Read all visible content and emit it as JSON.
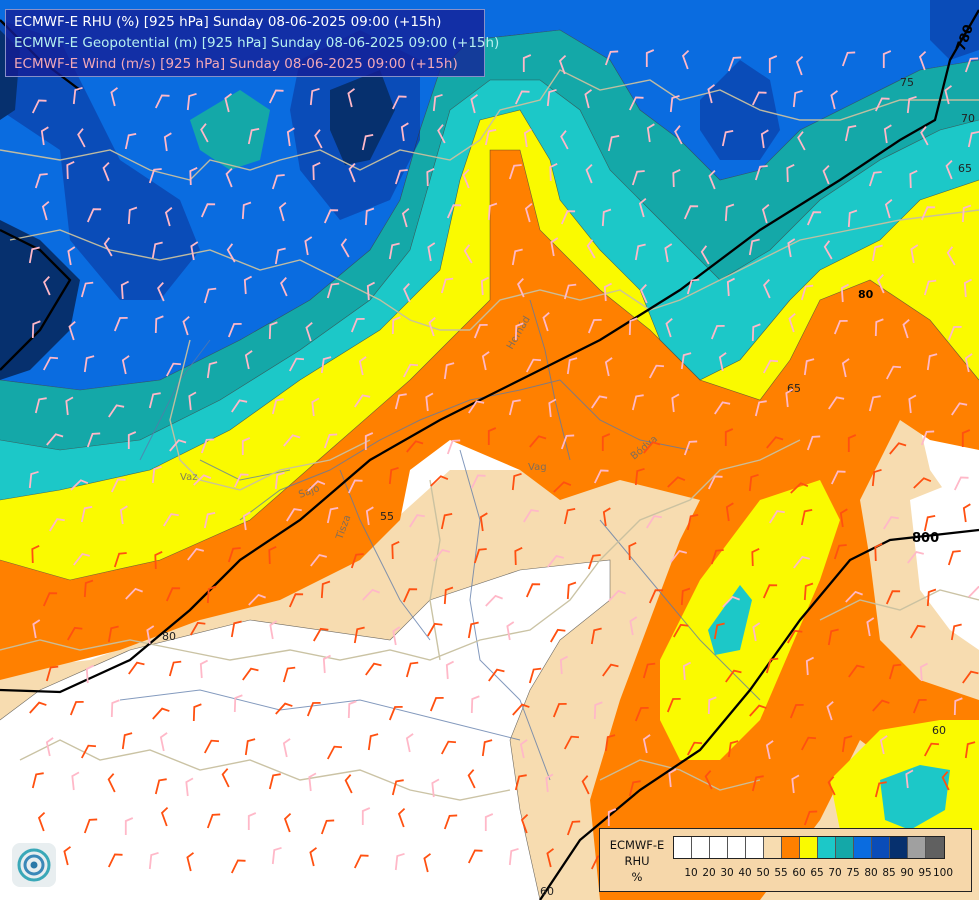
{
  "header": {
    "line1": "ECMWF-E RHU (%) [925 hPa] Sunday 08-06-2025 09:00 (+15h)",
    "line2": "ECMWF-E Geopotential (m) [925 hPa] Sunday 08-06-2025 09:00 (+15h)",
    "line3": "ECMWF-E Wind (m/s) [925 hPa] Sunday 08-06-2025 09:00 (+15h)",
    "colors": {
      "line1": "#ffffff",
      "line2": "#b7f0f0",
      "line3": "#f2a8b8"
    }
  },
  "map": {
    "geopotential_labels": [
      "780",
      "800",
      "80"
    ],
    "rhu_contour_labels": [
      "75",
      "70",
      "65",
      "80",
      "65",
      "60",
      "60",
      "55"
    ],
    "river_labels": [
      "Hernád",
      "Vag",
      "Bódva",
      "Sajó",
      "Tisza",
      "Vaz"
    ],
    "colors": {
      "rhu_100": "#ffffff",
      "rhu_55": "#f7dcb0",
      "rhu_60": "#ff8000",
      "rhu_65": "#fafa00",
      "rhu_70": "#1cc8c8",
      "rhu_75": "#14a8a8",
      "rhu_80": "#0a6ce0",
      "rhu_85": "#0a4cb8",
      "rhu_90": "#06306e",
      "geopotential": "#000000",
      "border": "#c8c0a0",
      "river": "#5a78a8",
      "barb_strong": "#ff5010",
      "barb_weak": "#ffb8c8"
    }
  },
  "legend": {
    "title_lines": [
      "ECMWF-E",
      "RHU",
      "%"
    ],
    "colors": [
      "#ffffff",
      "#ffffff",
      "#ffffff",
      "#ffffff",
      "#ffffff",
      "#f7dcb0",
      "#ff8000",
      "#fafa00",
      "#1cc8c8",
      "#14a8a8",
      "#0a6ce0",
      "#0a4cb8",
      "#06306e",
      "#a0a0a0",
      "#606060"
    ],
    "ticks": [
      "10",
      "20",
      "30",
      "40",
      "50",
      "55",
      "60",
      "65",
      "70",
      "75",
      "80",
      "85",
      "90",
      "95",
      "100"
    ]
  },
  "logo": {
    "icon": "ecmwf-logo-icon"
  }
}
